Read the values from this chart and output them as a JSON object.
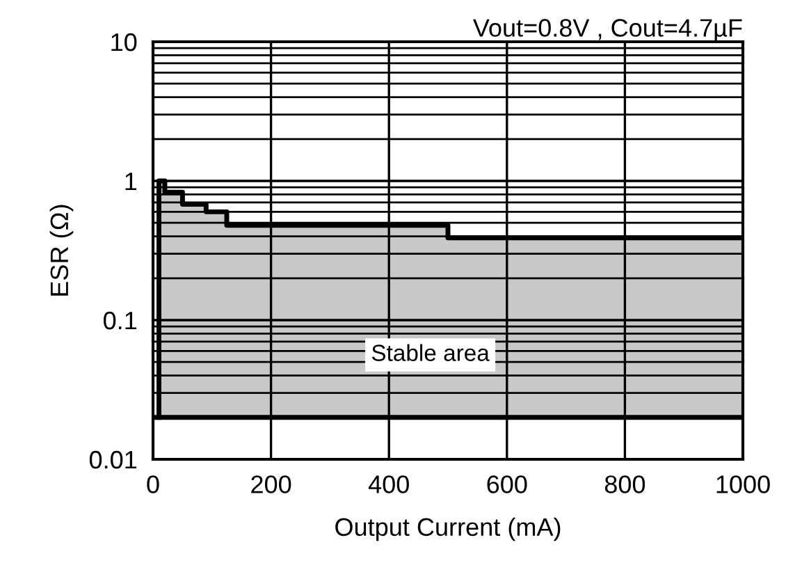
{
  "chart_data": {
    "type": "area",
    "title": "Vout=0.8V , Cout=4.7µF",
    "xlabel": "Output Current (mA)",
    "ylabel": "ESR (Ω)",
    "series": [
      {
        "color": "#c8c8c8",
        "x": [
          10,
          10,
          20,
          20,
          50,
          50,
          90,
          90,
          125,
          125,
          500,
          500,
          1000
        ],
        "values": [
          0.02,
          1.0,
          1.0,
          0.83,
          0.83,
          0.68,
          0.68,
          0.6,
          0.6,
          0.48,
          0.48,
          0.39,
          0.39
        ]
      }
    ],
    "ref_lines": [
      {
        "axis": "y",
        "value": 0.02,
        "color": "#000000"
      }
    ],
    "xlim": [
      0,
      1000
    ],
    "xticks": [
      0,
      200,
      400,
      600,
      800,
      1000
    ],
    "ylim": [
      0.01,
      10
    ],
    "yticks": [
      {
        "value": 0.01,
        "label": "0.01"
      },
      {
        "value": 0.1,
        "label": "0.1"
      },
      {
        "value": 1,
        "label": "1"
      },
      {
        "value": 10,
        "label": "10"
      }
    ],
    "log": "y",
    "grid": true,
    "annotations": [
      "Stable area"
    ]
  }
}
